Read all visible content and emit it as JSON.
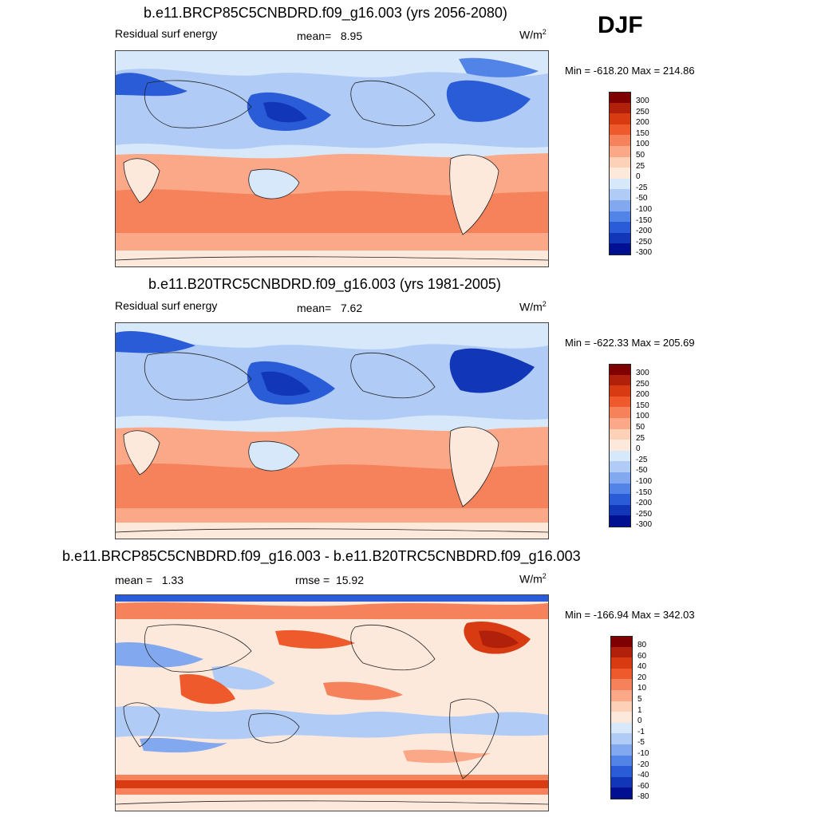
{
  "season": "DJF",
  "panels": [
    {
      "title": "b.e11.BRCP85C5CNBDRD.f09_g16.003 (yrs 2056-2080)",
      "left_label": "Residual surf energy",
      "stat1": "mean=   8.95",
      "stat2": "",
      "units": "W/m",
      "units_sup": "2",
      "minmax": "Min = -618.20 Max = 214.86",
      "levels": [
        "300",
        "250",
        "200",
        "150",
        "100",
        "50",
        "25",
        "0",
        "-25",
        "-50",
        "-100",
        "-150",
        "-200",
        "-250",
        "-300"
      ]
    },
    {
      "title": "b.e11.B20TRC5CNBDRD.f09_g16.003 (yrs 1981-2005)",
      "left_label": "Residual surf energy",
      "stat1": "mean=   7.62",
      "stat2": "",
      "units": "W/m",
      "units_sup": "2",
      "minmax": "Min = -622.33 Max = 205.69",
      "levels": [
        "300",
        "250",
        "200",
        "150",
        "100",
        "50",
        "25",
        "0",
        "-25",
        "-50",
        "-100",
        "-150",
        "-200",
        "-250",
        "-300"
      ]
    },
    {
      "title": "b.e11.BRCP85C5CNBDRD.f09_g16.003 - b.e11.B20TRC5CNBDRD.f09_g16.003",
      "left_label": "mean =   1.33",
      "stat1": "",
      "stat2": "rmse =  15.92",
      "units": "W/m",
      "units_sup": "2",
      "minmax": "Min = -166.94 Max = 342.03",
      "levels": [
        "80",
        "60",
        "40",
        "20",
        "10",
        "5",
        "1",
        "0",
        "-1",
        "-5",
        "-10",
        "-20",
        "-40",
        "-60",
        "-80"
      ]
    }
  ],
  "colors": {
    "scale": [
      "#7f0000",
      "#b0200a",
      "#d83a12",
      "#ee5a2c",
      "#f5825a",
      "#fba888",
      "#fdd0b8",
      "#fde8dc",
      "#d8e8fb",
      "#b0ccf6",
      "#82a8f0",
      "#5284e8",
      "#2a5cd8",
      "#1236b8",
      "#001090"
    ]
  }
}
